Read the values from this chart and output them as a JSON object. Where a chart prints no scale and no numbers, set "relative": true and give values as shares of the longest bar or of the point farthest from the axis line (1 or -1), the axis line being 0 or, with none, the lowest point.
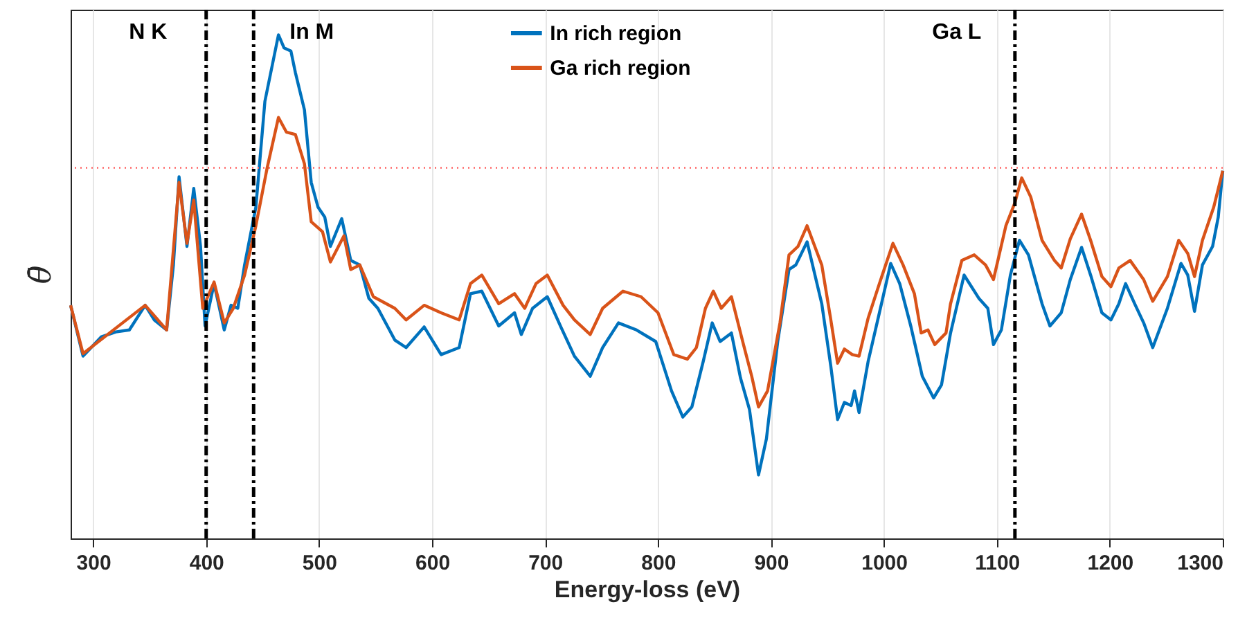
{
  "chart_data": {
    "type": "line",
    "xlabel": "Energy-loss (eV)",
    "ylabel": "θ̄",
    "relative": true,
    "xlim": [
      280,
      1300
    ],
    "xticks": [
      300,
      400,
      500,
      600,
      700,
      800,
      900,
      1000,
      1100,
      1200,
      1300
    ],
    "grid": "x",
    "legend": "top",
    "line_style": "solid",
    "series": [
      {
        "name": "In rich region",
        "color": "#0072bd",
        "x": [
          280,
          291,
          307,
          320,
          332,
          346,
          354,
          365,
          371,
          376,
          383,
          389,
          395,
          399,
          407,
          416,
          422,
          428,
          434,
          444,
          452,
          459,
          464,
          469,
          475,
          479,
          487,
          493,
          499,
          505,
          510,
          520,
          528,
          536,
          544,
          552,
          567,
          577,
          593,
          608,
          624,
          634,
          644,
          659,
          673,
          679,
          689,
          702,
          714,
          726,
          740,
          751,
          765,
          781,
          798,
          812,
          822,
          830,
          840,
          848,
          855,
          865,
          873,
          881,
          889,
          896,
          906,
          916,
          922,
          932,
          945,
          953,
          959,
          965,
          971,
          974,
          978,
          986,
          996,
          1006,
          1014,
          1024,
          1034,
          1044,
          1051,
          1059,
          1071,
          1084,
          1092,
          1097,
          1104,
          1112,
          1120,
          1128,
          1140,
          1147,
          1157,
          1165,
          1175,
          1183,
          1193,
          1201,
          1208,
          1214,
          1222,
          1230,
          1238,
          1251,
          1263,
          1269,
          1275,
          1282,
          1291,
          1296,
          1300
        ],
        "values": [
          0.463,
          0.362,
          0.4,
          0.41,
          0.414,
          0.463,
          0.434,
          0.414,
          0.543,
          0.718,
          0.58,
          0.695,
          0.58,
          0.422,
          0.506,
          0.414,
          0.463,
          0.457,
          0.543,
          0.658,
          0.868,
          0.945,
          1.0,
          0.974,
          0.968,
          0.925,
          0.851,
          0.707,
          0.658,
          0.638,
          0.58,
          0.635,
          0.552,
          0.543,
          0.477,
          0.457,
          0.394,
          0.379,
          0.42,
          0.365,
          0.379,
          0.486,
          0.491,
          0.422,
          0.448,
          0.405,
          0.457,
          0.48,
          0.42,
          0.362,
          0.322,
          0.379,
          0.428,
          0.414,
          0.391,
          0.293,
          0.241,
          0.261,
          0.351,
          0.428,
          0.391,
          0.408,
          0.319,
          0.256,
          0.126,
          0.198,
          0.391,
          0.534,
          0.543,
          0.589,
          0.466,
          0.342,
          0.236,
          0.27,
          0.264,
          0.293,
          0.25,
          0.351,
          0.448,
          0.546,
          0.506,
          0.42,
          0.322,
          0.279,
          0.305,
          0.408,
          0.523,
          0.477,
          0.457,
          0.385,
          0.414,
          0.523,
          0.592,
          0.563,
          0.466,
          0.422,
          0.448,
          0.514,
          0.578,
          0.523,
          0.448,
          0.434,
          0.466,
          0.506,
          0.466,
          0.428,
          0.379,
          0.457,
          0.546,
          0.523,
          0.451,
          0.543,
          0.58,
          0.638,
          0.73
        ]
      },
      {
        "name": "Ga rich region",
        "color": "#d95319",
        "x": [
          280,
          291,
          346,
          365,
          376,
          383,
          389,
          397,
          407,
          416,
          424,
          434,
          444,
          454,
          464,
          471,
          479,
          487,
          493,
          503,
          510,
          522,
          528,
          536,
          548,
          567,
          577,
          593,
          608,
          624,
          634,
          644,
          659,
          673,
          682,
          692,
          702,
          716,
          726,
          740,
          751,
          769,
          785,
          800,
          814,
          826,
          834,
          842,
          849,
          856,
          865,
          875,
          883,
          889,
          897,
          908,
          916,
          924,
          932,
          945,
          953,
          959,
          965,
          972,
          978,
          986,
          996,
          1008,
          1017,
          1027,
          1033,
          1039,
          1045,
          1055,
          1059,
          1069,
          1080,
          1090,
          1097,
          1108,
          1116,
          1122,
          1130,
          1140,
          1151,
          1157,
          1165,
          1175,
          1183,
          1193,
          1201,
          1208,
          1218,
          1230,
          1238,
          1251,
          1261,
          1269,
          1275,
          1282,
          1292,
          1300
        ],
        "values": [
          0.463,
          0.367,
          0.463,
          0.414,
          0.707,
          0.586,
          0.672,
          0.457,
          0.509,
          0.428,
          0.457,
          0.523,
          0.621,
          0.736,
          0.836,
          0.807,
          0.802,
          0.744,
          0.629,
          0.609,
          0.549,
          0.601,
          0.534,
          0.543,
          0.48,
          0.457,
          0.434,
          0.463,
          0.448,
          0.434,
          0.506,
          0.523,
          0.466,
          0.486,
          0.457,
          0.506,
          0.523,
          0.463,
          0.434,
          0.405,
          0.457,
          0.491,
          0.48,
          0.448,
          0.365,
          0.356,
          0.379,
          0.457,
          0.491,
          0.457,
          0.48,
          0.391,
          0.322,
          0.261,
          0.293,
          0.428,
          0.563,
          0.58,
          0.621,
          0.543,
          0.434,
          0.348,
          0.376,
          0.365,
          0.362,
          0.437,
          0.506,
          0.586,
          0.543,
          0.486,
          0.408,
          0.414,
          0.385,
          0.408,
          0.466,
          0.552,
          0.563,
          0.543,
          0.514,
          0.621,
          0.667,
          0.716,
          0.678,
          0.592,
          0.552,
          0.537,
          0.595,
          0.644,
          0.592,
          0.52,
          0.5,
          0.537,
          0.552,
          0.514,
          0.471,
          0.52,
          0.592,
          0.566,
          0.52,
          0.592,
          0.658,
          0.73
        ]
      }
    ],
    "ref_lines": [
      {
        "axis": "x",
        "value": 400,
        "label": "N K",
        "color": "#000000",
        "line_style": "dashed"
      },
      {
        "axis": "x",
        "value": 442,
        "label": "In M",
        "color": "#000000",
        "line_style": "dashed"
      },
      {
        "axis": "x",
        "value": 1116,
        "label": "Ga L",
        "color": "#000000",
        "line_style": "dashed"
      },
      {
        "axis": "y",
        "value": 0.736,
        "color": "#ff6666",
        "line_style": "dotted"
      }
    ]
  }
}
